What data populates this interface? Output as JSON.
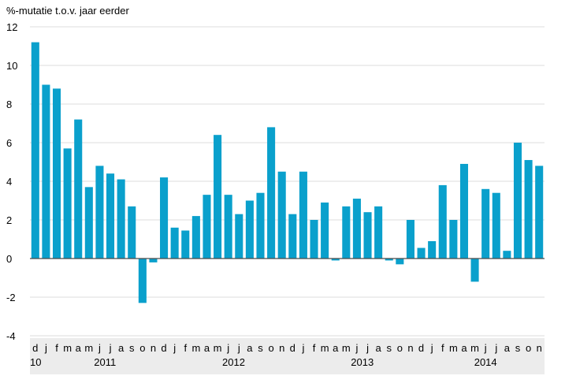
{
  "chart_data": {
    "type": "bar",
    "ylabel": "%-mutatie t.o.v. jaar eerder",
    "ylim": [
      -4,
      12
    ],
    "yticks": [
      -4,
      -2,
      0,
      2,
      4,
      6,
      8,
      10,
      12
    ],
    "grid": true,
    "bar_color": "#0aa0cc",
    "categories": [
      "d",
      "j",
      "f",
      "m",
      "a",
      "m",
      "j",
      "j",
      "a",
      "s",
      "o",
      "n",
      "d",
      "j",
      "f",
      "m",
      "a",
      "m",
      "j",
      "j",
      "a",
      "s",
      "o",
      "n",
      "d",
      "j",
      "f",
      "m",
      "a",
      "m",
      "j",
      "j",
      "a",
      "s",
      "o",
      "n",
      "d",
      "j",
      "f",
      "m",
      "a",
      "m",
      "j",
      "j",
      "a",
      "s",
      "o",
      "n"
    ],
    "year_labels": [
      {
        "label": "10",
        "start": 0,
        "end": 0
      },
      {
        "label": "2011",
        "start": 1,
        "end": 12
      },
      {
        "label": "2012",
        "start": 13,
        "end": 24
      },
      {
        "label": "2013",
        "start": 25,
        "end": 36
      },
      {
        "label": "2014",
        "start": 37,
        "end": 47
      }
    ],
    "values": [
      11.2,
      9.0,
      8.8,
      5.7,
      7.2,
      3.7,
      4.8,
      4.4,
      4.1,
      2.7,
      -2.3,
      -0.2,
      4.2,
      1.6,
      1.45,
      2.2,
      3.3,
      6.4,
      3.3,
      2.3,
      3.0,
      3.4,
      6.8,
      4.5,
      2.3,
      4.5,
      2.0,
      2.9,
      -0.1,
      2.7,
      3.1,
      2.4,
      2.7,
      -0.1,
      -0.3,
      2.0,
      0.55,
      0.9,
      3.8,
      2.0,
      4.9,
      -1.2,
      3.6,
      3.4,
      0.4,
      6.0,
      5.1,
      4.8
    ]
  }
}
